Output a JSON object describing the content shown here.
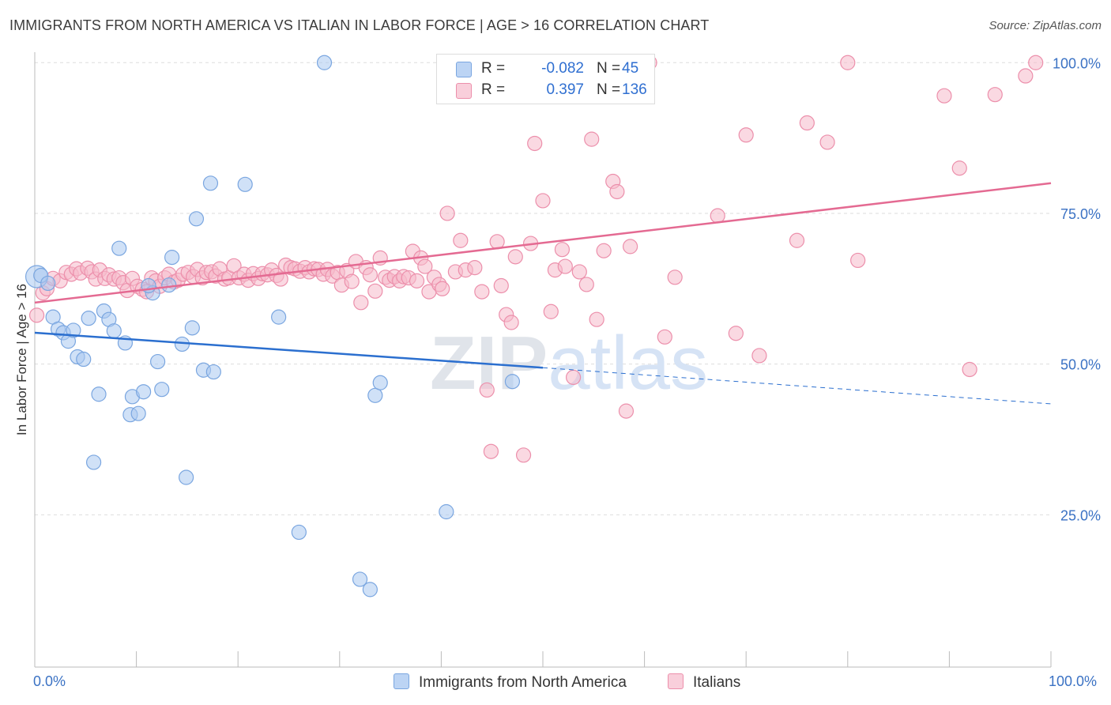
{
  "title": "IMMIGRANTS FROM NORTH AMERICA VS ITALIAN IN LABOR FORCE | AGE > 16 CORRELATION CHART",
  "source": "Source: ZipAtlas.com",
  "watermark": "ZIPatlas",
  "colors": {
    "blue_fill": "#a9c8f0",
    "blue_stroke": "#7aa6e0",
    "blue_line": "#2b6fcf",
    "pink_fill": "#f6b9ca",
    "pink_stroke": "#ec8fab",
    "pink_line": "#e46a92",
    "tick_text": "#3b72c4",
    "grid": "#dddddd"
  },
  "legend": {
    "r_label": "R =",
    "n_label": "N =",
    "rows": [
      {
        "r": "-0.082",
        "n": "45",
        "series": "blue"
      },
      {
        "r": "0.397",
        "n": "136",
        "series": "pink"
      }
    ]
  },
  "chart_data": {
    "type": "scatter",
    "ylabel": "In Labor Force | Age > 16",
    "xlim": [
      0,
      100
    ],
    "ylim": [
      0,
      102
    ],
    "x_tick_labels": [
      "0.0%",
      "100.0%"
    ],
    "y_ticks": [
      25,
      50,
      75,
      100
    ],
    "y_tick_labels": [
      "25.0%",
      "50.0%",
      "75.0%",
      "100.0%"
    ],
    "grid": true,
    "series": [
      {
        "name": "Immigrants from North America",
        "color": "blue",
        "trend": {
          "x0": 0,
          "y0": 55.2,
          "x1": 50,
          "y1": 49.4,
          "dash_to_x": 100,
          "dash_to_y": 43.4
        },
        "points": [
          [
            0.2,
            64.5
          ],
          [
            0.6,
            64.7
          ],
          [
            1.3,
            63.4
          ],
          [
            1.8,
            57.8
          ],
          [
            2.3,
            55.8
          ],
          [
            2.8,
            55.2
          ],
          [
            3.3,
            53.8
          ],
          [
            3.8,
            55.6
          ],
          [
            4.2,
            51.2
          ],
          [
            4.8,
            50.8
          ],
          [
            5.3,
            57.6
          ],
          [
            6.3,
            45.0
          ],
          [
            5.8,
            33.7
          ],
          [
            6.8,
            58.8
          ],
          [
            7.3,
            57.4
          ],
          [
            7.8,
            55.5
          ],
          [
            8.3,
            69.2
          ],
          [
            8.9,
            53.5
          ],
          [
            9.4,
            41.6
          ],
          [
            9.6,
            44.6
          ],
          [
            10.2,
            41.8
          ],
          [
            10.7,
            45.4
          ],
          [
            11.6,
            61.8
          ],
          [
            11.2,
            63.0
          ],
          [
            12.1,
            50.4
          ],
          [
            12.5,
            45.8
          ],
          [
            13.2,
            63.1
          ],
          [
            13.5,
            67.7
          ],
          [
            14.5,
            53.3
          ],
          [
            14.9,
            31.2
          ],
          [
            15.5,
            56.0
          ],
          [
            15.9,
            74.1
          ],
          [
            16.6,
            49.0
          ],
          [
            17.3,
            80.0
          ],
          [
            17.6,
            48.7
          ],
          [
            20.7,
            79.8
          ],
          [
            24.0,
            57.8
          ],
          [
            26.0,
            22.1
          ],
          [
            28.5,
            100.0
          ],
          [
            32.0,
            14.3
          ],
          [
            33.0,
            12.6
          ],
          [
            33.5,
            44.8
          ],
          [
            34.0,
            46.9
          ],
          [
            40.5,
            25.5
          ],
          [
            47.0,
            47.1
          ]
        ]
      },
      {
        "name": "Italians",
        "color": "pink",
        "trend": {
          "x0": 0,
          "y0": 60.2,
          "x1": 100,
          "y1": 80.0
        },
        "points": [
          [
            0.2,
            58.1
          ],
          [
            0.8,
            61.8
          ],
          [
            1.2,
            62.5
          ],
          [
            1.8,
            64.2
          ],
          [
            2.5,
            63.8
          ],
          [
            3.1,
            65.2
          ],
          [
            3.6,
            64.9
          ],
          [
            4.1,
            65.8
          ],
          [
            4.5,
            65.1
          ],
          [
            5.2,
            65.9
          ],
          [
            5.6,
            65.3
          ],
          [
            6.0,
            64.1
          ],
          [
            6.4,
            65.6
          ],
          [
            6.9,
            64.2
          ],
          [
            7.3,
            64.8
          ],
          [
            7.8,
            64.1
          ],
          [
            8.3,
            64.3
          ],
          [
            8.7,
            63.5
          ],
          [
            9.1,
            62.2
          ],
          [
            9.6,
            64.2
          ],
          [
            10.1,
            62.9
          ],
          [
            10.6,
            62.4
          ],
          [
            11.0,
            62.0
          ],
          [
            11.5,
            64.3
          ],
          [
            11.9,
            63.8
          ],
          [
            12.3,
            62.9
          ],
          [
            12.8,
            64.3
          ],
          [
            13.2,
            64.9
          ],
          [
            13.7,
            63.6
          ],
          [
            14.1,
            63.9
          ],
          [
            14.6,
            64.9
          ],
          [
            15.1,
            65.2
          ],
          [
            15.6,
            64.5
          ],
          [
            16.0,
            65.7
          ],
          [
            16.5,
            64.3
          ],
          [
            16.9,
            65.2
          ],
          [
            17.4,
            65.3
          ],
          [
            17.8,
            64.6
          ],
          [
            18.2,
            65.8
          ],
          [
            18.7,
            64.1
          ],
          [
            19.1,
            64.3
          ],
          [
            19.6,
            66.3
          ],
          [
            20.1,
            64.3
          ],
          [
            20.6,
            64.9
          ],
          [
            21.0,
            63.9
          ],
          [
            21.5,
            65.0
          ],
          [
            22.0,
            64.2
          ],
          [
            22.4,
            65.0
          ],
          [
            22.9,
            64.8
          ],
          [
            23.3,
            65.6
          ],
          [
            23.8,
            64.7
          ],
          [
            24.2,
            64.1
          ],
          [
            24.7,
            66.4
          ],
          [
            25.2,
            66.0
          ],
          [
            25.6,
            65.8
          ],
          [
            26.1,
            65.4
          ],
          [
            26.6,
            66.0
          ],
          [
            27.0,
            65.3
          ],
          [
            27.5,
            65.8
          ],
          [
            27.9,
            65.7
          ],
          [
            28.4,
            64.9
          ],
          [
            28.8,
            65.7
          ],
          [
            29.3,
            64.6
          ],
          [
            29.8,
            65.2
          ],
          [
            30.2,
            63.1
          ],
          [
            30.7,
            65.5
          ],
          [
            31.2,
            63.7
          ],
          [
            31.6,
            67.0
          ],
          [
            32.1,
            60.2
          ],
          [
            32.6,
            66.0
          ],
          [
            33.0,
            64.8
          ],
          [
            33.5,
            62.1
          ],
          [
            34.0,
            67.6
          ],
          [
            34.5,
            64.4
          ],
          [
            34.9,
            63.9
          ],
          [
            35.4,
            64.5
          ],
          [
            35.9,
            63.8
          ],
          [
            36.3,
            64.5
          ],
          [
            36.8,
            64.3
          ],
          [
            37.2,
            68.7
          ],
          [
            37.6,
            63.8
          ],
          [
            38.0,
            67.6
          ],
          [
            38.4,
            66.2
          ],
          [
            38.8,
            62.0
          ],
          [
            39.3,
            64.4
          ],
          [
            39.8,
            63.2
          ],
          [
            40.1,
            62.5
          ],
          [
            40.6,
            75.0
          ],
          [
            41.4,
            65.3
          ],
          [
            41.9,
            70.5
          ],
          [
            42.4,
            65.6
          ],
          [
            43.3,
            66.0
          ],
          [
            44.0,
            62.0
          ],
          [
            44.5,
            45.7
          ],
          [
            44.9,
            35.5
          ],
          [
            45.5,
            70.3
          ],
          [
            45.9,
            63.0
          ],
          [
            46.4,
            58.2
          ],
          [
            46.9,
            56.9
          ],
          [
            47.3,
            67.8
          ],
          [
            48.1,
            34.9
          ],
          [
            48.8,
            70.0
          ],
          [
            49.2,
            86.6
          ],
          [
            50.0,
            77.1
          ],
          [
            50.8,
            58.7
          ],
          [
            51.2,
            65.6
          ],
          [
            51.9,
            69.0
          ],
          [
            52.2,
            66.2
          ],
          [
            53.0,
            47.8
          ],
          [
            53.6,
            65.3
          ],
          [
            54.3,
            63.2
          ],
          [
            54.8,
            87.3
          ],
          [
            55.3,
            57.4
          ],
          [
            56.0,
            68.8
          ],
          [
            56.9,
            80.3
          ],
          [
            57.3,
            78.6
          ],
          [
            58.2,
            42.2
          ],
          [
            58.6,
            69.5
          ],
          [
            60.5,
            100.0
          ],
          [
            62.0,
            54.5
          ],
          [
            63.0,
            64.4
          ],
          [
            67.2,
            74.6
          ],
          [
            69.0,
            55.1
          ],
          [
            70.0,
            88.0
          ],
          [
            71.3,
            51.4
          ],
          [
            75.0,
            70.5
          ],
          [
            76.0,
            90.0
          ],
          [
            78.0,
            86.8
          ],
          [
            80.0,
            100.0
          ],
          [
            81.0,
            67.2
          ],
          [
            89.5,
            94.5
          ],
          [
            91.0,
            82.5
          ],
          [
            92.0,
            49.1
          ],
          [
            94.5,
            94.7
          ],
          [
            97.5,
            97.8
          ],
          [
            98.5,
            100.0
          ]
        ]
      }
    ]
  }
}
